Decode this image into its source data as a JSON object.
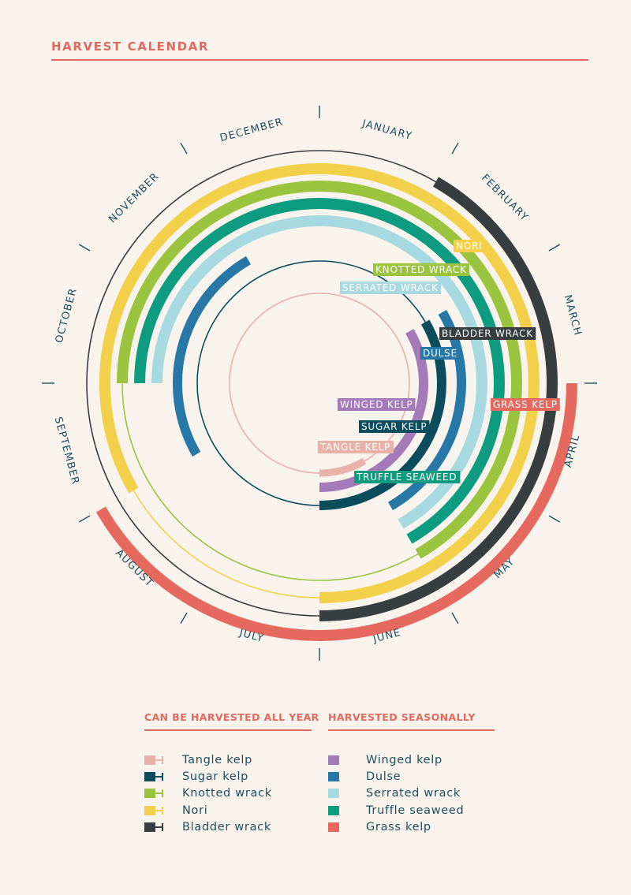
{
  "title": "HARVEST CALENDAR",
  "months": [
    "JANUARY",
    "FEBRUARY",
    "MARCH",
    "APRIL",
    "MAY",
    "JUNE",
    "JULY",
    "AUGUST",
    "SEPTEMBER",
    "OCTOBER",
    "NOVEMBER",
    "DECEMBER"
  ],
  "colors": {
    "background": "#f8f4ed",
    "accent": "#e2695f",
    "text": "#1f4e5e",
    "tangle_kelp": "#e8b1a9",
    "sugar_kelp": "#0b4d5c",
    "knotted_wrack": "#9bc43e",
    "nori": "#f3d04a",
    "bladder_wrack": "#383d40",
    "winged_kelp": "#a57ab9",
    "dulse": "#2778a6",
    "serrated_wrack": "#a7dae0",
    "truffle_seaweed": "#0d9c7f",
    "grass_kelp": "#e6695f"
  },
  "chart_data": {
    "type": "radial-calendar",
    "all_year": [
      {
        "name": "Tangle kelp",
        "label": "TANGLE KELP",
        "color": "#e8b1a9",
        "season_start_month": 6,
        "season_end_month": 6
      },
      {
        "name": "Sugar kelp",
        "label": "SUGAR KELP",
        "color": "#0b4d5c",
        "season_start_month": 3,
        "season_end_month": 6
      },
      {
        "name": "Knotted wrack",
        "label": "KNOTTED WRACK",
        "color": "#9bc43e",
        "season_start_month": 10,
        "season_end_month": 5
      },
      {
        "name": "Nori",
        "label": "NORI",
        "color": "#f3d04a",
        "season_start_month": 9,
        "season_end_month": 6
      },
      {
        "name": "Bladder wrack",
        "label": "BLADDER WRACK",
        "color": "#383d40",
        "season_start_month": 2,
        "season_end_month": 6
      }
    ],
    "seasonal": [
      {
        "name": "Winged kelp",
        "label": "WINGED KELP",
        "color": "#a57ab9",
        "season_start_month": 3,
        "season_end_month": 6
      },
      {
        "name": "Dulse",
        "label": "DULSE",
        "color": "#2778a6",
        "season_start_month": 3,
        "season_end_month": 5,
        "second_start_month": 9,
        "second_end_month": 11
      },
      {
        "name": "Serrated wrack",
        "label": "SERRATED WRACK",
        "color": "#a7dae0",
        "season_start_month": 10,
        "season_end_month": 5
      },
      {
        "name": "Truffle seaweed",
        "label": "TRUFFLE SEAWEED",
        "color": "#0d9c7f",
        "season_start_month": 10,
        "season_end_month": 5
      },
      {
        "name": "Grass kelp",
        "label": "GRASS KELP",
        "color": "#e6695f",
        "season_start_month": 4,
        "season_end_month": 8
      }
    ]
  },
  "legend": {
    "all_year_heading": "CAN BE HARVESTED ALL YEAR",
    "seasonal_heading": "HARVESTED SEASONALLY",
    "all_year": [
      {
        "label": "Tangle kelp",
        "color": "#e8b1a9"
      },
      {
        "label": "Sugar kelp",
        "color": "#0b4d5c"
      },
      {
        "label": "Knotted wrack",
        "color": "#9bc43e"
      },
      {
        "label": "Nori",
        "color": "#f3d04a"
      },
      {
        "label": "Bladder wrack",
        "color": "#383d40"
      }
    ],
    "seasonal": [
      {
        "label": "Winged kelp",
        "color": "#a57ab9"
      },
      {
        "label": "Dulse",
        "color": "#2778a6"
      },
      {
        "label": "Serrated wrack",
        "color": "#a7dae0"
      },
      {
        "label": "Truffle seaweed",
        "color": "#0d9c7f"
      },
      {
        "label": "Grass kelp",
        "color": "#e6695f"
      }
    ]
  }
}
